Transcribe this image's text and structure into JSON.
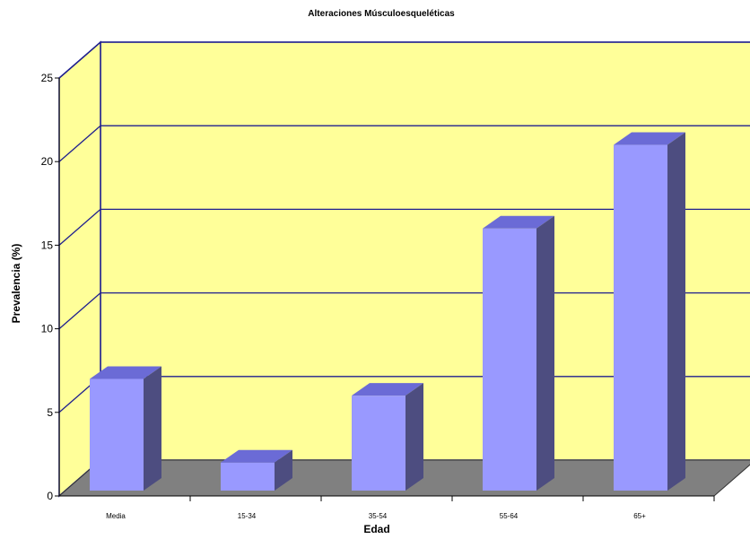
{
  "chart_data": {
    "type": "bar",
    "title": "Alteraciones Músculoesqueléticas",
    "xlabel": "Edad",
    "ylabel": "Prevalencia (%)",
    "categories": [
      "Media",
      "15-34",
      "35-54",
      "55-64",
      "65+"
    ],
    "values": [
      7.0,
      2.0,
      6.0,
      16.0,
      21.0
    ],
    "ylim": [
      0,
      25
    ],
    "yticks": [
      "0",
      "5",
      "10",
      "15",
      "20",
      "25"
    ],
    "grid": true,
    "legend": "none",
    "colors": {
      "wall": "#ffff99",
      "floor": "#808080",
      "grid": "#1f1f8f",
      "bar_front": "#9999ff",
      "bar_top": "#6b6bd6",
      "bar_side": "#4d4d80"
    }
  }
}
